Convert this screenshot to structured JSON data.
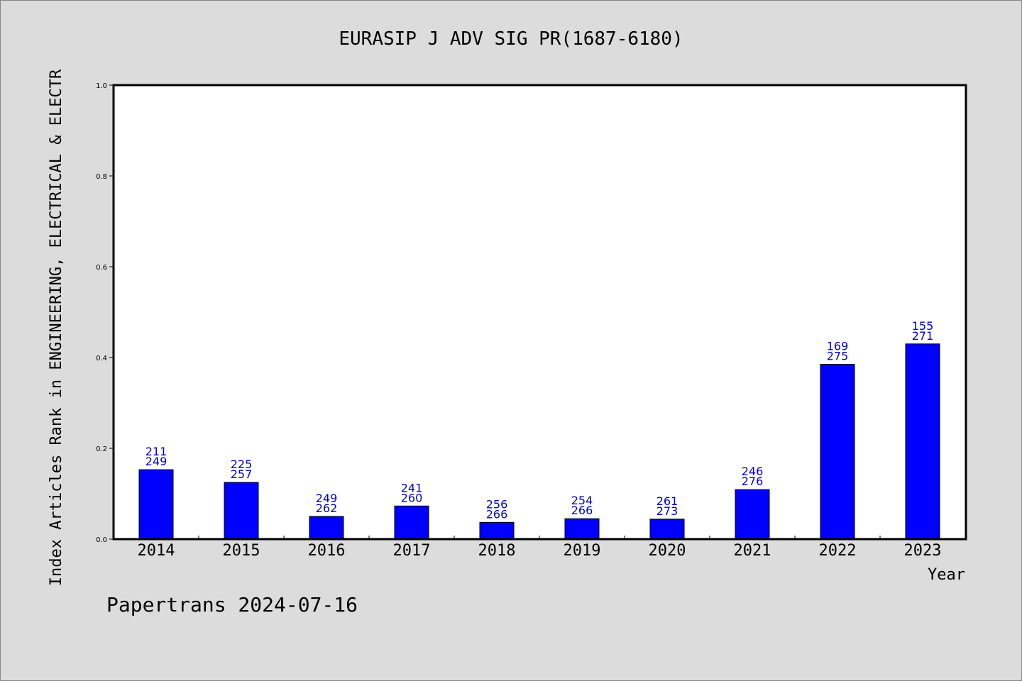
{
  "chart_data": {
    "type": "bar",
    "title": "EURASIP J ADV SIG PR(1687-6180)",
    "xlabel": "Year",
    "ylabel": "Index Articles Rank in ENGINEERING, ELECTRICAL & ELECTR",
    "ylim": [
      0,
      1.0
    ],
    "yticks": [
      "0.0",
      "0.2",
      "0.4",
      "0.6",
      "0.8",
      "1.0"
    ],
    "categories": [
      "2014",
      "2015",
      "2016",
      "2017",
      "2018",
      "2019",
      "2020",
      "2021",
      "2022",
      "2023"
    ],
    "values": [
      0.153,
      0.125,
      0.05,
      0.073,
      0.037,
      0.045,
      0.044,
      0.109,
      0.385,
      0.43
    ],
    "ranks": [
      "211",
      "225",
      "249",
      "241",
      "256",
      "254",
      "261",
      "246",
      "169",
      "155"
    ],
    "totals": [
      "249",
      "257",
      "262",
      "260",
      "266",
      "266",
      "273",
      "276",
      "275",
      "271"
    ],
    "bar_color": "#0000ff",
    "label_color": "#0000cc",
    "grid": false,
    "legend": "none"
  },
  "footer": "Papertrans 2024-07-16"
}
